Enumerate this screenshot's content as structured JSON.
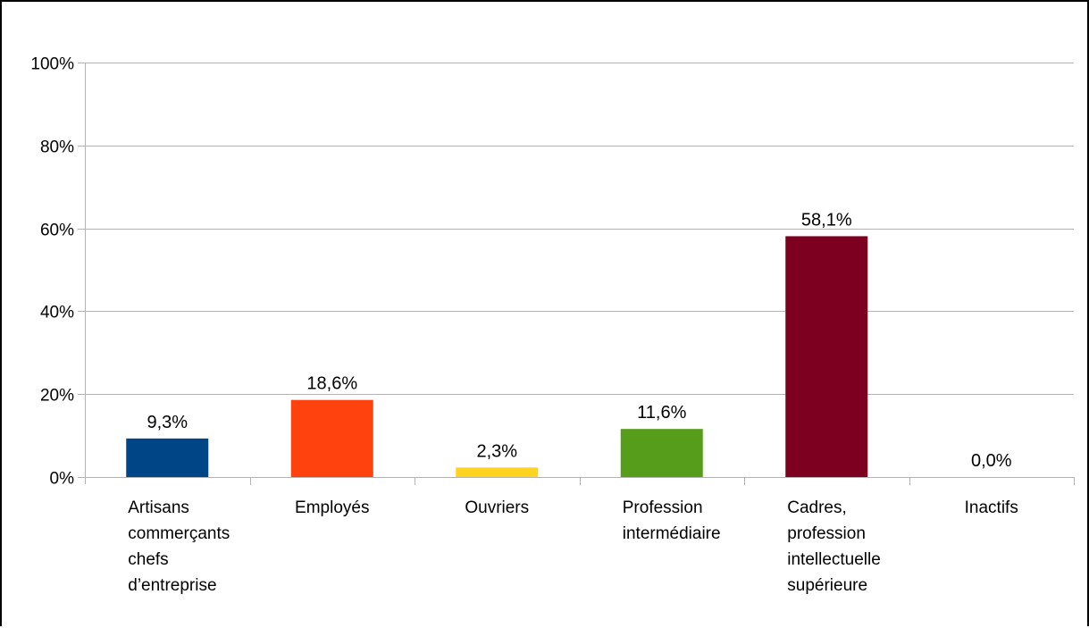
{
  "chart_data": {
    "type": "bar",
    "categories": [
      "Artisans commerçants chefs d’entreprise",
      "Employés",
      "Ouvriers",
      "Profession intermédiaire",
      "Cadres, profession intellectuelle supérieure",
      "Inactifs"
    ],
    "category_lines": [
      [
        "Artisans",
        "commerçants",
        "chefs",
        "d’entreprise"
      ],
      [
        "Employés"
      ],
      [
        "Ouvriers"
      ],
      [
        "Profession",
        "intermédiaire"
      ],
      [
        "Cadres,",
        "profession",
        "intellectuelle",
        "supérieure"
      ],
      [
        "Inactifs"
      ]
    ],
    "values": [
      9.3,
      18.6,
      2.3,
      11.6,
      58.1,
      0.0
    ],
    "value_labels": [
      "9,3%",
      "18,6%",
      "2,3%",
      "11,6%",
      "58,1%",
      "0,0%"
    ],
    "colors": [
      "#004586",
      "#ff420e",
      "#ffd320",
      "#579d1c",
      "#7e0021",
      "#83caff"
    ],
    "ylim": [
      0,
      100
    ],
    "yticks": [
      0,
      20,
      40,
      60,
      80,
      100
    ],
    "ytick_labels": [
      "0%",
      "20%",
      "40%",
      "60%",
      "80%",
      "100%"
    ],
    "grid": true,
    "title": "",
    "xlabel": "",
    "ylabel": ""
  }
}
